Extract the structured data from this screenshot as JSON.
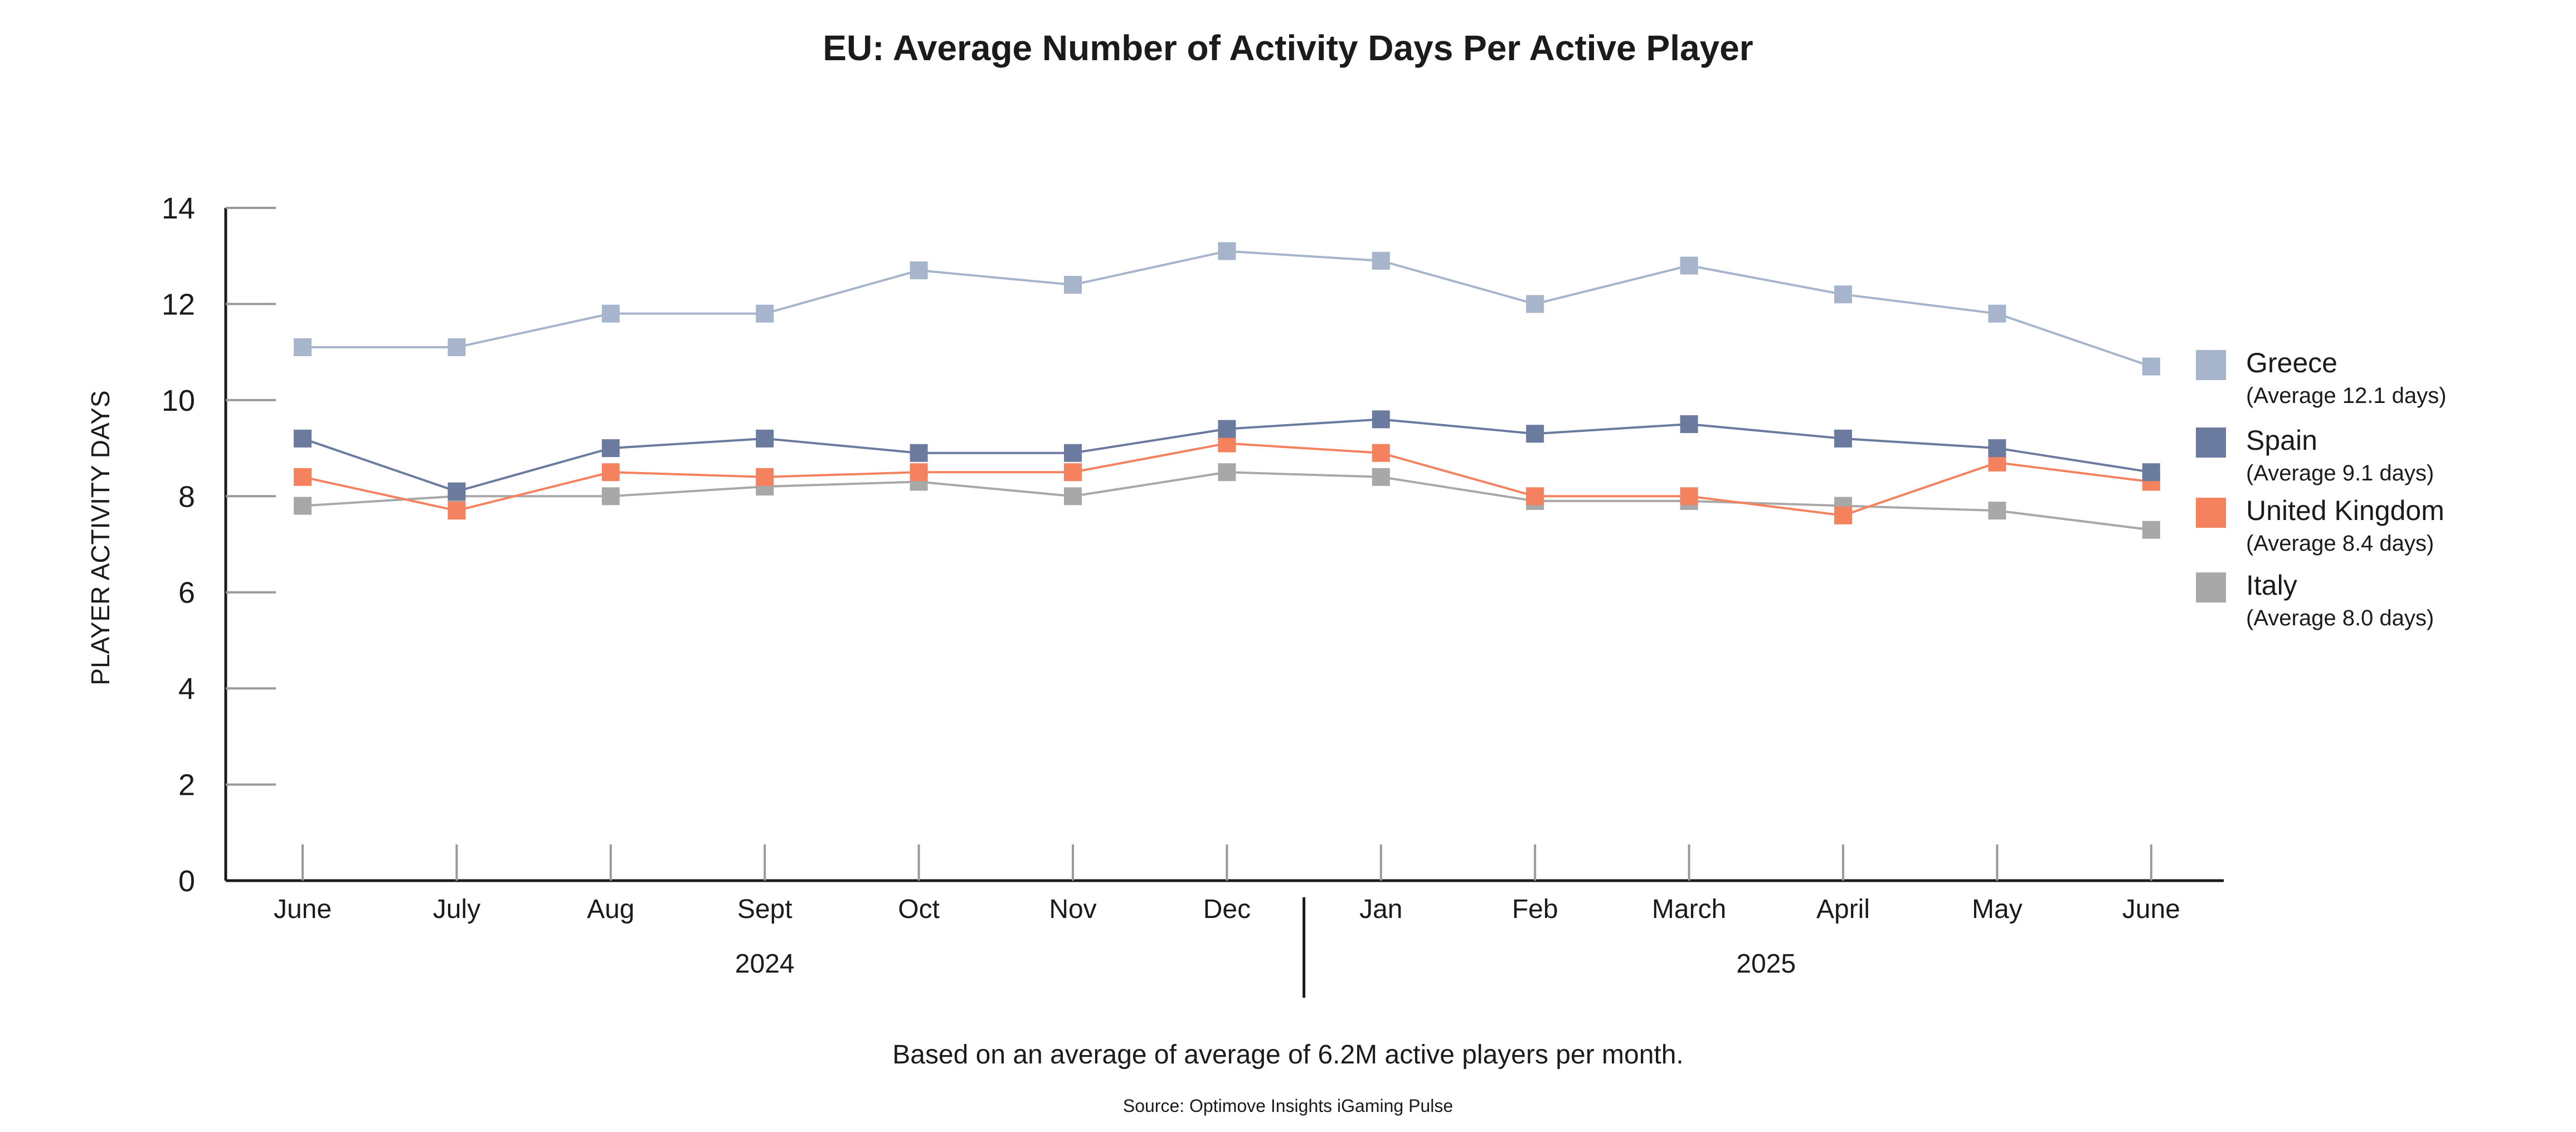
{
  "chart_data": {
    "type": "line",
    "title": "EU: Average Number of Activity Days Per Active Player",
    "ylabel": "PLAYER ACTIVITY DAYS",
    "xlabel": "",
    "ylim": [
      0,
      14
    ],
    "yticks": [
      0,
      2,
      4,
      6,
      8,
      10,
      12,
      14
    ],
    "categories": [
      "June",
      "July",
      "Aug",
      "Sept",
      "Oct",
      "Nov",
      "Dec",
      "Jan",
      "Feb",
      "March",
      "April",
      "May",
      "June"
    ],
    "year_groups": [
      {
        "label": "2024",
        "from": 0,
        "to": 6
      },
      {
        "label": "2025",
        "from": 7,
        "to": 12
      }
    ],
    "legend_position": "right",
    "grid": false,
    "series": [
      {
        "name": "Greece",
        "subtitle": "(Average 12.1 days)",
        "color": "#a6b5cc",
        "values": [
          11.1,
          11.1,
          11.8,
          11.8,
          12.7,
          12.4,
          13.1,
          12.9,
          12.0,
          12.8,
          12.2,
          11.8,
          10.7
        ]
      },
      {
        "name": "Spain",
        "subtitle": "(Average 9.1 days)",
        "color": "#6b7b9f",
        "values": [
          9.2,
          8.1,
          9.0,
          9.2,
          8.9,
          8.9,
          9.4,
          9.6,
          9.3,
          9.5,
          9.2,
          9.0,
          8.5
        ]
      },
      {
        "name": "United Kingdom",
        "subtitle": "(Average 8.4 days)",
        "color": "#f4825f",
        "values": [
          8.4,
          7.7,
          8.5,
          8.4,
          8.5,
          8.5,
          9.1,
          8.9,
          8.0,
          8.0,
          7.6,
          8.7,
          8.3
        ]
      },
      {
        "name": "Italy",
        "subtitle": "(Average 8.0 days)",
        "color": "#a8a8a8",
        "values": [
          7.8,
          8.0,
          8.0,
          8.2,
          8.3,
          8.0,
          8.5,
          8.4,
          7.9,
          7.9,
          7.8,
          7.7,
          7.3
        ]
      }
    ],
    "footnote": "Based on an average of average of 6.2M active players per month.",
    "source": "Source: Optimove Insights iGaming Pulse"
  }
}
